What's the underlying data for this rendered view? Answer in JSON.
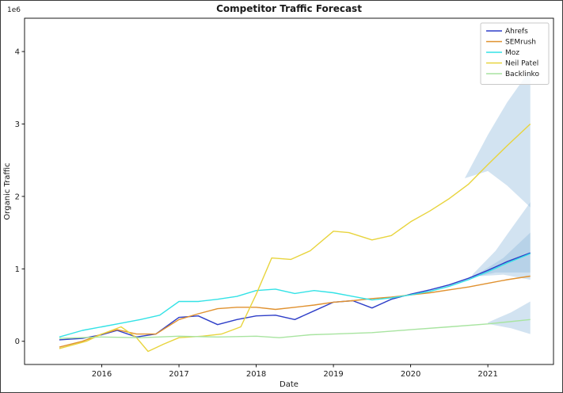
{
  "figure": {
    "alt": "Competitor Traffic Forecast line chart"
  },
  "chart_data": {
    "type": "line",
    "title": "Competitor Traffic Forecast",
    "xlabel": "Date",
    "ylabel": "Organic Traffic",
    "y_offset_text": "1e6",
    "y_unit": "millions (1e6)",
    "grid": false,
    "legend_position": "upper right",
    "xlim": [
      2015.0,
      2021.85
    ],
    "ylim": [
      -0.32,
      4.46
    ],
    "x_ticks": [
      2016,
      2017,
      2018,
      2019,
      2020,
      2021
    ],
    "y_ticks": [
      0,
      1,
      2,
      3,
      4
    ],
    "band_color": "#8fb8dc",
    "band_alpha": 0.4,
    "text_color": "#1a1a1a",
    "series": [
      {
        "name": "Ahrefs",
        "color": "#2e3ec8",
        "points": [
          [
            2015.45,
            0.02
          ],
          [
            2015.75,
            0.04
          ],
          [
            2016.0,
            0.09
          ],
          [
            2016.2,
            0.15
          ],
          [
            2016.45,
            0.06
          ],
          [
            2016.7,
            0.1
          ],
          [
            2017.0,
            0.33
          ],
          [
            2017.25,
            0.35
          ],
          [
            2017.5,
            0.23
          ],
          [
            2017.75,
            0.3
          ],
          [
            2018.0,
            0.35
          ],
          [
            2018.25,
            0.36
          ],
          [
            2018.5,
            0.3
          ],
          [
            2018.75,
            0.42
          ],
          [
            2019.0,
            0.54
          ],
          [
            2019.25,
            0.56
          ],
          [
            2019.5,
            0.46
          ],
          [
            2019.75,
            0.58
          ],
          [
            2020.0,
            0.65
          ],
          [
            2020.25,
            0.71
          ],
          [
            2020.5,
            0.78
          ],
          [
            2020.75,
            0.87
          ],
          [
            2021.0,
            0.98
          ],
          [
            2021.25,
            1.1
          ],
          [
            2021.55,
            1.22
          ]
        ]
      },
      {
        "name": "SEMrush",
        "color": "#e0912f",
        "points": [
          [
            2015.45,
            -0.08
          ],
          [
            2015.75,
            0.0
          ],
          [
            2016.0,
            0.1
          ],
          [
            2016.2,
            0.16
          ],
          [
            2016.45,
            0.1
          ],
          [
            2016.7,
            0.1
          ],
          [
            2017.0,
            0.3
          ],
          [
            2017.25,
            0.38
          ],
          [
            2017.5,
            0.45
          ],
          [
            2017.75,
            0.47
          ],
          [
            2018.0,
            0.47
          ],
          [
            2018.25,
            0.44
          ],
          [
            2018.5,
            0.47
          ],
          [
            2018.75,
            0.5
          ],
          [
            2019.0,
            0.54
          ],
          [
            2019.25,
            0.56
          ],
          [
            2019.5,
            0.59
          ],
          [
            2019.75,
            0.61
          ],
          [
            2020.0,
            0.64
          ],
          [
            2020.25,
            0.67
          ],
          [
            2020.5,
            0.71
          ],
          [
            2020.75,
            0.75
          ],
          [
            2021.0,
            0.8
          ],
          [
            2021.25,
            0.85
          ],
          [
            2021.55,
            0.9
          ]
        ]
      },
      {
        "name": "Moz",
        "color": "#33e2e6",
        "points": [
          [
            2015.45,
            0.06
          ],
          [
            2015.75,
            0.15
          ],
          [
            2016.0,
            0.2
          ],
          [
            2016.25,
            0.25
          ],
          [
            2016.5,
            0.3
          ],
          [
            2016.75,
            0.36
          ],
          [
            2017.0,
            0.55
          ],
          [
            2017.25,
            0.55
          ],
          [
            2017.5,
            0.58
          ],
          [
            2017.75,
            0.62
          ],
          [
            2018.0,
            0.7
          ],
          [
            2018.25,
            0.72
          ],
          [
            2018.5,
            0.66
          ],
          [
            2018.75,
            0.7
          ],
          [
            2019.0,
            0.67
          ],
          [
            2019.25,
            0.62
          ],
          [
            2019.5,
            0.57
          ],
          [
            2019.75,
            0.6
          ],
          [
            2020.0,
            0.64
          ],
          [
            2020.25,
            0.69
          ],
          [
            2020.5,
            0.76
          ],
          [
            2020.75,
            0.85
          ],
          [
            2021.0,
            0.96
          ],
          [
            2021.25,
            1.08
          ],
          [
            2021.55,
            1.21
          ]
        ]
      },
      {
        "name": "Neil Patel",
        "color": "#e8d43d",
        "points": [
          [
            2015.45,
            -0.1
          ],
          [
            2015.8,
            0.0
          ],
          [
            2016.0,
            0.1
          ],
          [
            2016.25,
            0.2
          ],
          [
            2016.45,
            0.05
          ],
          [
            2016.6,
            -0.14
          ],
          [
            2016.8,
            -0.04
          ],
          [
            2017.0,
            0.05
          ],
          [
            2017.3,
            0.07
          ],
          [
            2017.55,
            0.1
          ],
          [
            2017.8,
            0.2
          ],
          [
            2018.0,
            0.65
          ],
          [
            2018.2,
            1.15
          ],
          [
            2018.45,
            1.13
          ],
          [
            2018.7,
            1.25
          ],
          [
            2019.0,
            1.52
          ],
          [
            2019.2,
            1.5
          ],
          [
            2019.5,
            1.4
          ],
          [
            2019.75,
            1.46
          ],
          [
            2020.0,
            1.65
          ],
          [
            2020.25,
            1.8
          ],
          [
            2020.5,
            1.97
          ],
          [
            2020.75,
            2.17
          ],
          [
            2021.0,
            2.44
          ],
          [
            2021.25,
            2.7
          ],
          [
            2021.55,
            3.0
          ]
        ]
      },
      {
        "name": "Backlinko",
        "color": "#a8e4a0",
        "points": [
          [
            2015.45,
            0.04
          ],
          [
            2016.0,
            0.06
          ],
          [
            2016.5,
            0.05
          ],
          [
            2017.0,
            0.07
          ],
          [
            2017.5,
            0.06
          ],
          [
            2018.0,
            0.07
          ],
          [
            2018.3,
            0.05
          ],
          [
            2018.7,
            0.09
          ],
          [
            2019.0,
            0.1
          ],
          [
            2019.5,
            0.12
          ],
          [
            2020.0,
            0.16
          ],
          [
            2020.5,
            0.2
          ],
          [
            2021.0,
            0.24
          ],
          [
            2021.55,
            0.3
          ]
        ]
      }
    ],
    "bands": [
      {
        "name": "neil-patel-forecast",
        "upper": [
          [
            2020.7,
            2.25
          ],
          [
            2021.0,
            2.85
          ],
          [
            2021.25,
            3.3
          ],
          [
            2021.55,
            3.75
          ]
        ],
        "lower": [
          [
            2020.7,
            2.25
          ],
          [
            2021.0,
            2.35
          ],
          [
            2021.25,
            2.15
          ],
          [
            2021.55,
            1.85
          ]
        ]
      },
      {
        "name": "moz-forecast",
        "upper": [
          [
            2020.8,
            0.92
          ],
          [
            2021.1,
            1.25
          ],
          [
            2021.3,
            1.55
          ],
          [
            2021.55,
            1.92
          ]
        ],
        "lower": [
          [
            2020.8,
            0.88
          ],
          [
            2021.1,
            0.95
          ],
          [
            2021.3,
            0.95
          ],
          [
            2021.55,
            0.95
          ]
        ]
      },
      {
        "name": "ahrefs-forecast",
        "upper": [
          [
            2020.9,
            0.95
          ],
          [
            2021.2,
            1.15
          ],
          [
            2021.55,
            1.5
          ]
        ],
        "lower": [
          [
            2020.9,
            0.9
          ],
          [
            2021.2,
            0.92
          ],
          [
            2021.55,
            0.85
          ]
        ]
      },
      {
        "name": "backlinko-forecast",
        "upper": [
          [
            2021.0,
            0.26
          ],
          [
            2021.3,
            0.4
          ],
          [
            2021.55,
            0.55
          ]
        ],
        "lower": [
          [
            2021.0,
            0.24
          ],
          [
            2021.3,
            0.18
          ],
          [
            2021.55,
            0.1
          ]
        ]
      }
    ],
    "legend": {
      "labels": [
        "Ahrefs",
        "SEMrush",
        "Moz",
        "Neil Patel",
        "Backlinko"
      ]
    }
  }
}
